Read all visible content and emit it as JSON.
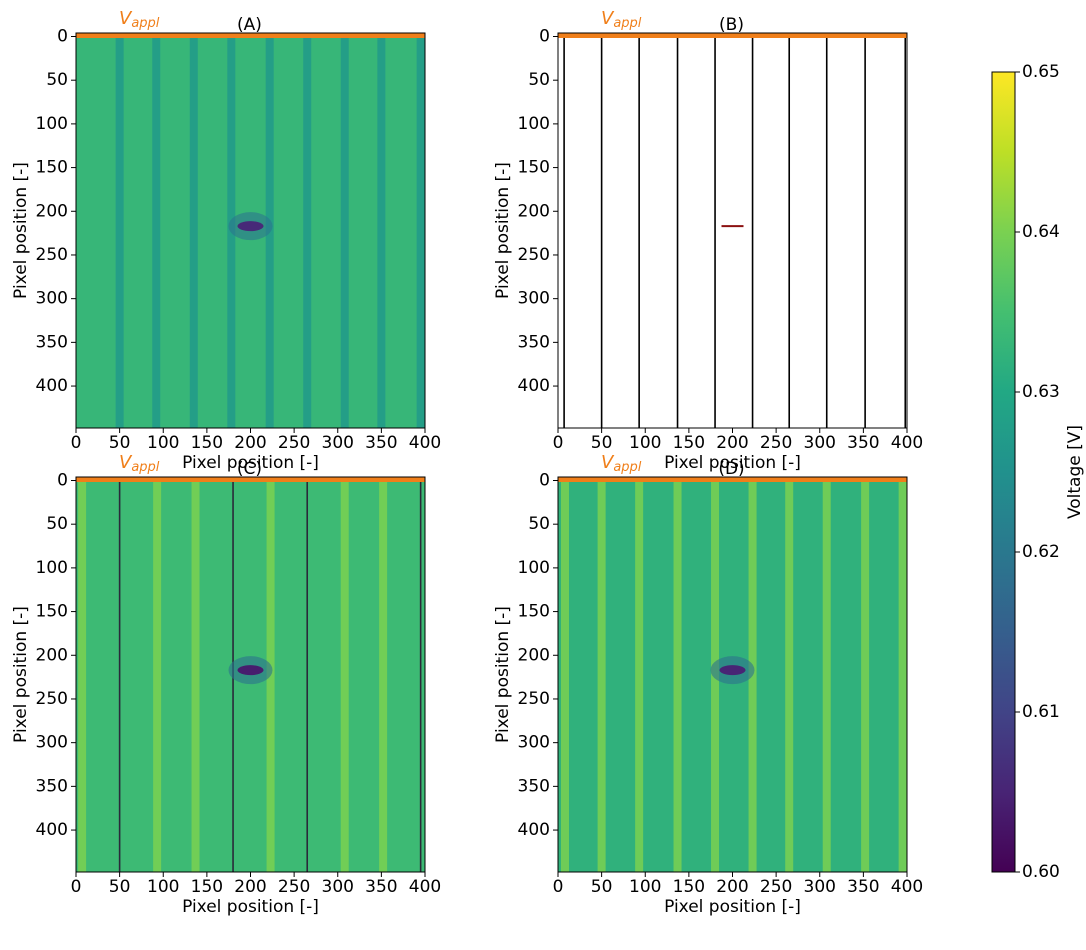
{
  "chart_data": [
    {
      "type": "heatmap",
      "title": "(A)",
      "annotation": "V",
      "annotation_sub": "appl",
      "xlabel": "Pixel position [-]",
      "ylabel": "Pixel position [-]",
      "xlim": [
        0,
        400
      ],
      "ylim": [
        448,
        -4
      ],
      "xticks": [
        0,
        50,
        100,
        150,
        200,
        250,
        300,
        350,
        400
      ],
      "yticks": [
        0,
        50,
        100,
        150,
        200,
        250,
        300,
        350,
        400
      ],
      "background_value": 0.633,
      "busbar_color": "#f07f1a",
      "stripes": {
        "x": [
          50,
          92,
          135,
          178,
          222,
          265,
          308,
          350,
          395
        ],
        "value": 0.627
      },
      "defect": {
        "x": 200,
        "y": 217,
        "value": 0.606
      }
    },
    {
      "type": "heatmap",
      "title": "(B)",
      "annotation": "V",
      "annotation_sub": "appl",
      "xlabel": "Pixel position [-]",
      "ylabel": "Pixel position [-]",
      "xlim": [
        0,
        400
      ],
      "ylim": [
        448,
        -4
      ],
      "xticks": [
        0,
        50,
        100,
        150,
        200,
        250,
        300,
        350,
        400
      ],
      "yticks": [
        0,
        50,
        100,
        150,
        200,
        250,
        300,
        350,
        400
      ],
      "background": "#ffffff",
      "busbar_color": "#f07f1a",
      "lines": {
        "x": [
          7,
          50,
          93,
          137,
          180,
          223,
          265,
          308,
          352,
          398
        ],
        "color": "#000000"
      },
      "defect": {
        "x": 200,
        "y": 217,
        "color": "#8b1010"
      }
    },
    {
      "type": "heatmap",
      "title": "(C)",
      "annotation": "V",
      "annotation_sub": "appl",
      "xlabel": "Pixel position [-]",
      "ylabel": "Pixel position [-]",
      "xlim": [
        0,
        400
      ],
      "ylim": [
        448,
        -4
      ],
      "xticks": [
        0,
        50,
        100,
        150,
        200,
        250,
        300,
        350,
        400
      ],
      "yticks": [
        0,
        50,
        100,
        150,
        200,
        250,
        300,
        350,
        400
      ],
      "background_value": 0.634,
      "busbar_color": "#f07f1a",
      "stripes": {
        "x": [
          7,
          93,
          137,
          223,
          308,
          352
        ],
        "value": 0.64
      },
      "lines": {
        "x": [
          50,
          180,
          265,
          395
        ],
        "color": "#2a2a3a"
      },
      "defect": {
        "x": 200,
        "y": 217,
        "value": 0.604
      }
    },
    {
      "type": "heatmap",
      "title": "(D)",
      "annotation": "V",
      "annotation_sub": "appl",
      "xlabel": "Pixel position [-]",
      "ylabel": "Pixel position [-]",
      "xlim": [
        0,
        400
      ],
      "ylim": [
        448,
        -4
      ],
      "xticks": [
        0,
        50,
        100,
        150,
        200,
        250,
        300,
        350,
        400
      ],
      "yticks": [
        0,
        50,
        100,
        150,
        200,
        250,
        300,
        350,
        400
      ],
      "background_value": 0.632,
      "busbar_color": "#f07f1a",
      "stripes": {
        "x": [
          8,
          50,
          93,
          137,
          180,
          223,
          265,
          308,
          352,
          395
        ],
        "value": 0.64
      },
      "defect": {
        "x": 200,
        "y": 217,
        "value": 0.605
      }
    },
    {
      "type": "colorbar",
      "label": "Voltage [V]",
      "lim": [
        0.6,
        0.65
      ],
      "ticks": [
        {
          "value": 0.6,
          "label": "0.60"
        },
        0.61,
        0.62,
        0.63,
        0.64,
        0.65
      ]
    }
  ]
}
